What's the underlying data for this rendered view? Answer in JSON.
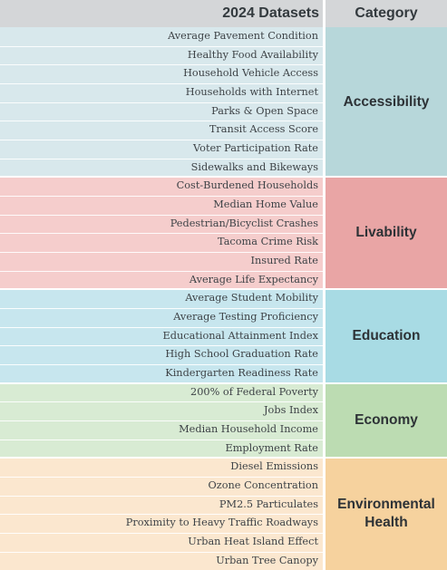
{
  "header": {
    "datasets": "2024 Datasets",
    "category": "Category"
  },
  "groups": [
    {
      "category": "Accessibility",
      "row_color": "#d8e8ec",
      "cat_color": "#b7d7da",
      "items": [
        "Average Pavement Condition",
        "Healthy Food Availability",
        "Household Vehicle Access",
        "Households with Internet",
        "Parks & Open Space",
        "Transit Access Score",
        "Voter Participation Rate",
        "Sidewalks and Bikeways"
      ]
    },
    {
      "category": "Livability",
      "row_color": "#f5cdcc",
      "cat_color": "#e9a5a5",
      "items": [
        "Cost-Burdened Households",
        "Median Home Value",
        "Pedestrian/Bicyclist Crashes",
        "Tacoma Crime Risk",
        "Insured Rate",
        "Average Life Expectancy"
      ]
    },
    {
      "category": "Education",
      "row_color": "#c7e6ee",
      "cat_color": "#a8dbe4",
      "items": [
        "Average Student Mobility",
        "Average Testing Proficiency",
        "Educational Attainment Index",
        "High School Graduation Rate",
        "Kindergarten Readiness Rate"
      ]
    },
    {
      "category": "Economy",
      "row_color": "#d8ebd3",
      "cat_color": "#bcdcb2",
      "items": [
        "200% of Federal Poverty",
        "Jobs Index",
        "Median Household Income",
        "Employment Rate"
      ]
    },
    {
      "category": "Environmental Health",
      "category_lines": [
        "Environmental",
        "Health"
      ],
      "row_color": "#fbe7cf",
      "cat_color": "#f6d29e",
      "items": [
        "Diesel Emissions",
        "Ozone Concentration",
        "PM2.5 Particulates",
        "Proximity to Heavy Traffic Roadways",
        "Urban Heat Island Effect",
        "Urban Tree Canopy"
      ]
    }
  ]
}
